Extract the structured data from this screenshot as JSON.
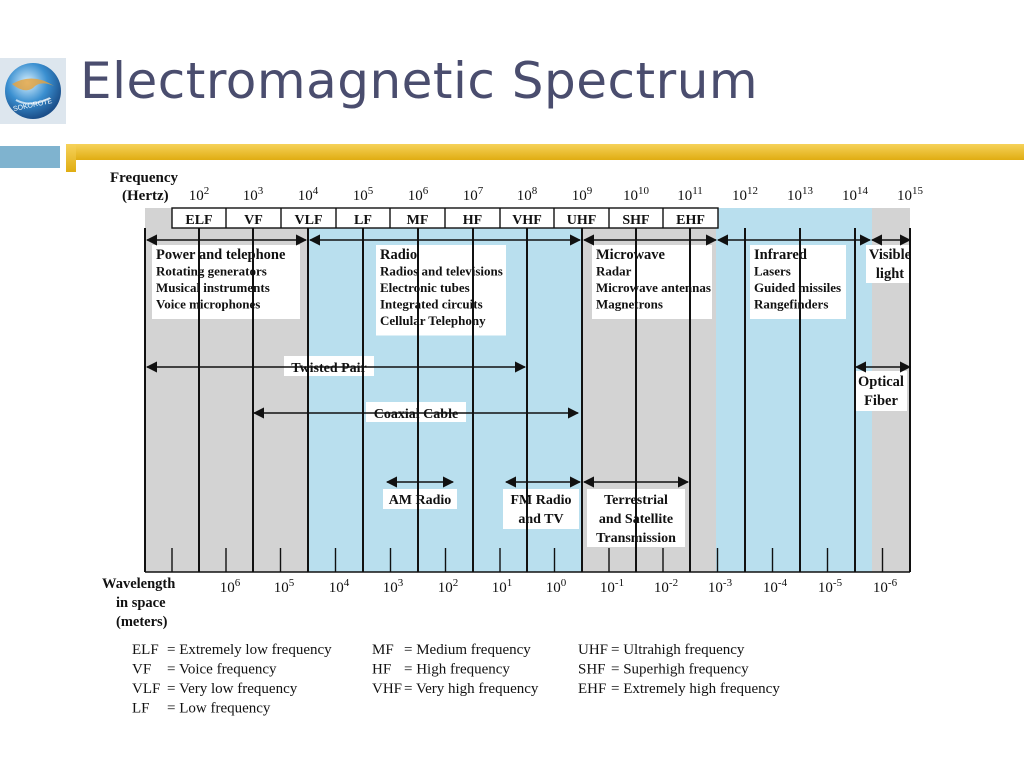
{
  "slide": {
    "title": "Electromagnetic Spectrum"
  },
  "logo": {
    "text": "SOKOROTE"
  },
  "figure": {
    "freq_axis_label": [
      "Frequency",
      "(Hertz)"
    ],
    "freq_ticks": [
      {
        "base": "10",
        "exp": "2"
      },
      {
        "base": "10",
        "exp": "3"
      },
      {
        "base": "10",
        "exp": "4"
      },
      {
        "base": "10",
        "exp": "5"
      },
      {
        "base": "10",
        "exp": "6"
      },
      {
        "base": "10",
        "exp": "7"
      },
      {
        "base": "10",
        "exp": "8"
      },
      {
        "base": "10",
        "exp": "9"
      },
      {
        "base": "10",
        "exp": "10"
      },
      {
        "base": "10",
        "exp": "11"
      },
      {
        "base": "10",
        "exp": "12"
      },
      {
        "base": "10",
        "exp": "13"
      },
      {
        "base": "10",
        "exp": "14"
      },
      {
        "base": "10",
        "exp": "15"
      }
    ],
    "bands": [
      "ELF",
      "VF",
      "VLF",
      "LF",
      "MF",
      "HF",
      "VHF",
      "UHF",
      "SHF",
      "EHF"
    ],
    "regions": [
      {
        "heading": "Power and telephone",
        "items": [
          "Rotating generators",
          "Musical instruments",
          "Voice microphones"
        ]
      },
      {
        "heading": "Radio",
        "items": [
          "Radios and televisions",
          "Electronic tubes",
          "Integrated circuits",
          "Cellular Telephony"
        ]
      },
      {
        "heading": "Microwave",
        "items": [
          "Radar",
          "Microwave antennas",
          "Magnetrons"
        ]
      },
      {
        "heading": "Infrared",
        "items": [
          "Lasers",
          "Guided missiles",
          "Rangefinders"
        ]
      },
      {
        "heading": "Visible light",
        "items": []
      }
    ],
    "spans": {
      "twisted_pair": "Twisted Pair",
      "coaxial_cable": "Coaxial Cable",
      "optical_fiber": "Optical Fiber",
      "am_radio": "AM Radio",
      "fm_radio": "FM Radio and TV",
      "terrestrial": "Terrestrial and Satellite Transmission"
    },
    "wavelength_axis_label": [
      "Wavelength",
      "in space",
      "(meters)"
    ],
    "wavelength_ticks": [
      {
        "base": "10",
        "exp": "6"
      },
      {
        "base": "10",
        "exp": "5"
      },
      {
        "base": "10",
        "exp": "4"
      },
      {
        "base": "10",
        "exp": "3"
      },
      {
        "base": "10",
        "exp": "2"
      },
      {
        "base": "10",
        "exp": "1"
      },
      {
        "base": "10",
        "exp": "0"
      },
      {
        "base": "10",
        "exp": "-1"
      },
      {
        "base": "10",
        "exp": "-2"
      },
      {
        "base": "10",
        "exp": "-3"
      },
      {
        "base": "10",
        "exp": "-4"
      },
      {
        "base": "10",
        "exp": "-5"
      },
      {
        "base": "10",
        "exp": "-6"
      }
    ],
    "glossary": [
      [
        "ELF",
        "= Extremely low frequency"
      ],
      [
        "VF",
        "= Voice frequency"
      ],
      [
        "VLF",
        "= Very low frequency"
      ],
      [
        "LF",
        "= Low frequency"
      ],
      [
        "MF",
        "= Medium frequency"
      ],
      [
        "HF",
        "= High frequency"
      ],
      [
        "VHF",
        "= Very high frequency"
      ],
      [
        "UHF",
        "= Ultrahigh frequency"
      ],
      [
        "SHF",
        "= Superhigh frequency"
      ],
      [
        "EHF",
        "= Extremely high frequency"
      ]
    ],
    "colors": {
      "gray": "#d3d3d3",
      "blue": "#b9dfee",
      "line": "#111111"
    }
  }
}
